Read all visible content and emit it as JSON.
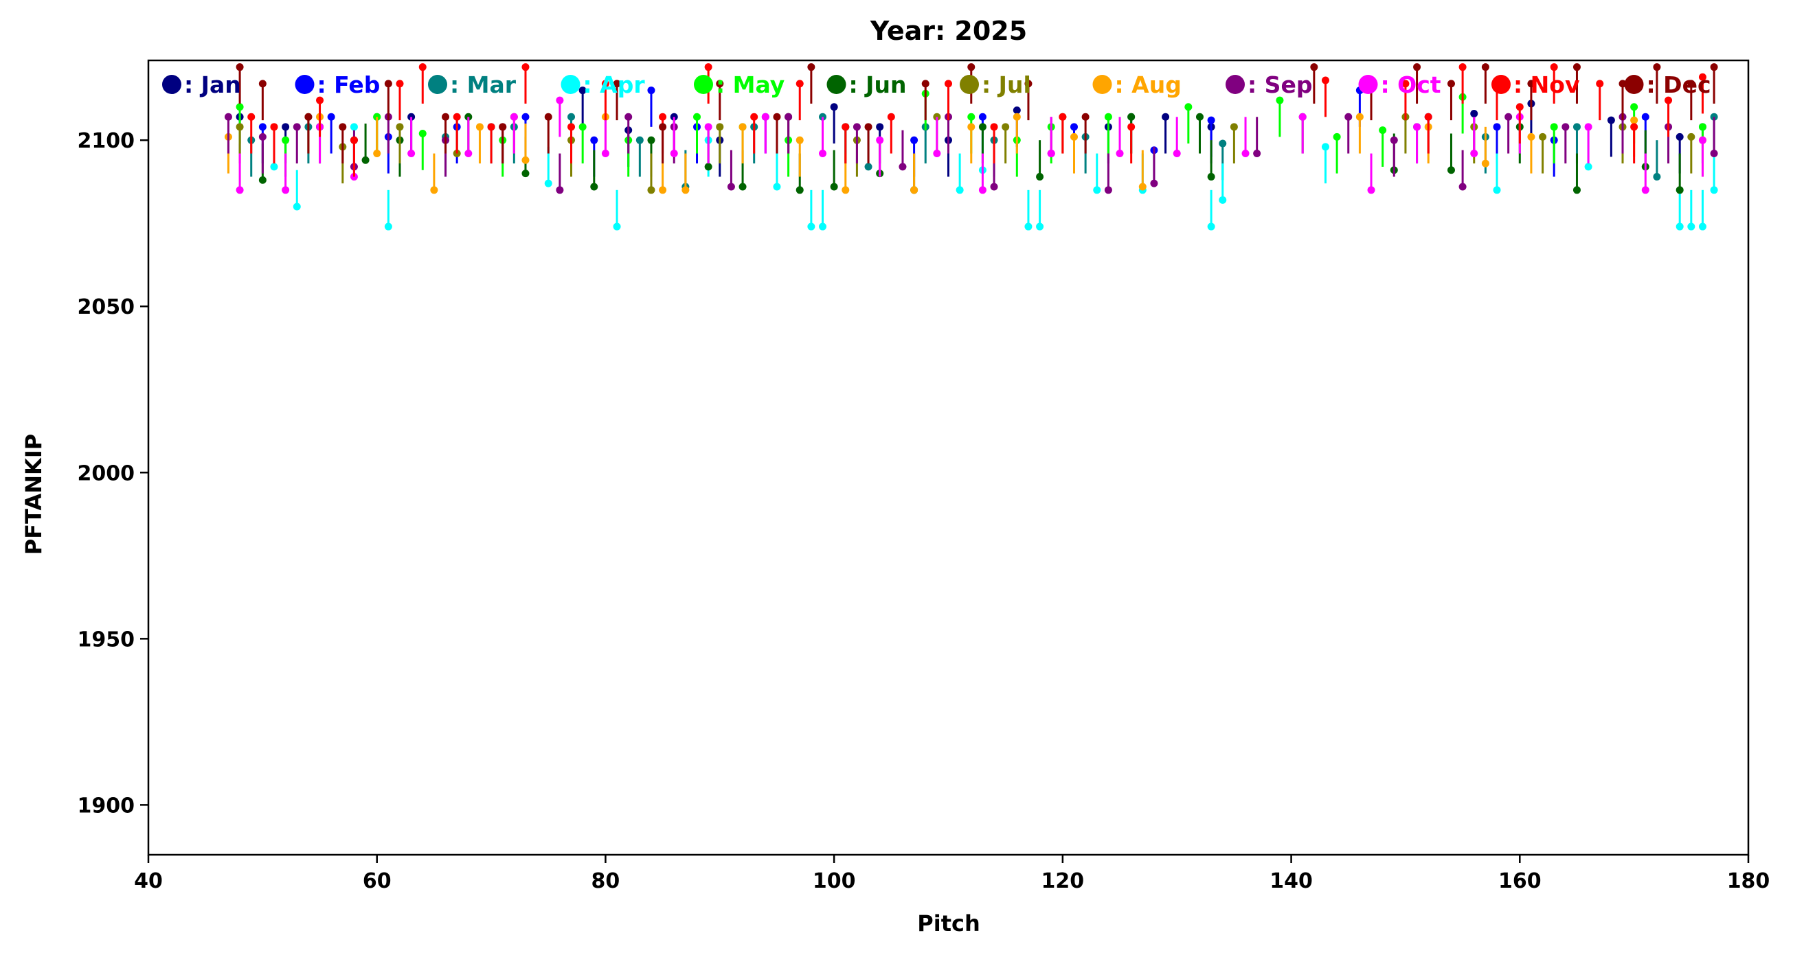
{
  "chart_data": {
    "type": "scatter",
    "title": "Year: 2025",
    "xlabel": "Pitch",
    "ylabel": "PFTANKIP",
    "xlim": [
      40,
      180
    ],
    "ylim": [
      1885,
      2124
    ],
    "xticks": [
      40,
      60,
      80,
      100,
      120,
      140,
      160,
      180
    ],
    "yticks": [
      1900,
      1950,
      2000,
      2050,
      2100
    ],
    "xtick_labels": [
      "40",
      "60",
      "80",
      "100",
      "120",
      "140",
      "160",
      "180"
    ],
    "ytick_labels": [
      "1900",
      "1950",
      "2000",
      "2050",
      "2100"
    ],
    "grid": false,
    "legend_placement": "top, inside plot, single row",
    "series": [
      {
        "name": ": Jan",
        "color": "#000080",
        "points": [
          [
            48,
            2107
          ],
          [
            52,
            2104
          ],
          [
            58,
            2100
          ],
          [
            63,
            2107
          ],
          [
            70,
            2104
          ],
          [
            78,
            2115
          ],
          [
            82,
            2103
          ],
          [
            86,
            2107
          ],
          [
            90,
            2100
          ],
          [
            96,
            2107
          ],
          [
            100,
            2110
          ],
          [
            104,
            2104
          ],
          [
            110,
            2100
          ],
          [
            116,
            2109
          ],
          [
            124,
            2104
          ],
          [
            129,
            2107
          ],
          [
            133,
            2104
          ],
          [
            156,
            2108
          ],
          [
            161,
            2111
          ],
          [
            168,
            2106
          ],
          [
            174,
            2101
          ]
        ]
      },
      {
        "name": ": Feb",
        "color": "#0000ff",
        "points": [
          [
            50,
            2104
          ],
          [
            56,
            2107
          ],
          [
            61,
            2101
          ],
          [
            67,
            2104
          ],
          [
            73,
            2107
          ],
          [
            79,
            2100
          ],
          [
            84,
            2115
          ],
          [
            88,
            2104
          ],
          [
            94,
            2107
          ],
          [
            101,
            2104
          ],
          [
            107,
            2100
          ],
          [
            113,
            2107
          ],
          [
            121,
            2104
          ],
          [
            128,
            2097
          ],
          [
            133,
            2106
          ],
          [
            146,
            2115
          ],
          [
            152,
            2107
          ],
          [
            158,
            2104
          ],
          [
            163,
            2100
          ],
          [
            171,
            2107
          ],
          [
            176,
            2104
          ]
        ]
      },
      {
        "name": ": Mar",
        "color": "#008080",
        "points": [
          [
            49,
            2100
          ],
          [
            54,
            2104
          ],
          [
            60,
            2107
          ],
          [
            66,
            2101
          ],
          [
            72,
            2104
          ],
          [
            77,
            2107
          ],
          [
            83,
            2100
          ],
          [
            87,
            2086
          ],
          [
            93,
            2104
          ],
          [
            99,
            2107
          ],
          [
            103,
            2092
          ],
          [
            108,
            2104
          ],
          [
            114,
            2100
          ],
          [
            122,
            2101
          ],
          [
            126,
            2107
          ],
          [
            134,
            2099
          ],
          [
            151,
            2104
          ],
          [
            157,
            2101
          ],
          [
            165,
            2104
          ],
          [
            172,
            2089
          ],
          [
            177,
            2107
          ]
        ]
      },
      {
        "name": ": Apr",
        "color": "#00ffff",
        "points": [
          [
            51,
            2092
          ],
          [
            53,
            2080
          ],
          [
            58,
            2104
          ],
          [
            61,
            2074
          ],
          [
            66,
            2100
          ],
          [
            70,
            2104
          ],
          [
            75,
            2087
          ],
          [
            81,
            2074
          ],
          [
            89,
            2100
          ],
          [
            95,
            2086
          ],
          [
            98,
            2074
          ],
          [
            99,
            2074
          ],
          [
            111,
            2085
          ],
          [
            113,
            2091
          ],
          [
            117,
            2074
          ],
          [
            118,
            2074
          ],
          [
            123,
            2085
          ],
          [
            127,
            2085
          ],
          [
            133,
            2074
          ],
          [
            134,
            2082
          ],
          [
            143,
            2098
          ],
          [
            158,
            2085
          ],
          [
            166,
            2092
          ],
          [
            174,
            2074
          ],
          [
            175,
            2074
          ],
          [
            176,
            2074
          ],
          [
            177,
            2085
          ]
        ]
      },
      {
        "name": ": May",
        "color": "#00ff00",
        "points": [
          [
            48,
            2110
          ],
          [
            52,
            2100
          ],
          [
            55,
            2104
          ],
          [
            60,
            2107
          ],
          [
            64,
            2102
          ],
          [
            71,
            2100
          ],
          [
            78,
            2104
          ],
          [
            82,
            2100
          ],
          [
            88,
            2107
          ],
          [
            92,
            2104
          ],
          [
            96,
            2100
          ],
          [
            101,
            2104
          ],
          [
            108,
            2114
          ],
          [
            112,
            2107
          ],
          [
            116,
            2100
          ],
          [
            119,
            2104
          ],
          [
            124,
            2107
          ],
          [
            131,
            2110
          ],
          [
            139,
            2112
          ],
          [
            144,
            2101
          ],
          [
            148,
            2103
          ],
          [
            155,
            2113
          ],
          [
            163,
            2104
          ],
          [
            170,
            2110
          ],
          [
            176,
            2104
          ]
        ]
      },
      {
        "name": ": Jun",
        "color": "#006400",
        "points": [
          [
            50,
            2088
          ],
          [
            55,
            2104
          ],
          [
            59,
            2094
          ],
          [
            62,
            2100
          ],
          [
            68,
            2107
          ],
          [
            73,
            2090
          ],
          [
            79,
            2086
          ],
          [
            84,
            2100
          ],
          [
            89,
            2092
          ],
          [
            92,
            2086
          ],
          [
            97,
            2085
          ],
          [
            100,
            2086
          ],
          [
            104,
            2090
          ],
          [
            107,
            2085
          ],
          [
            113,
            2104
          ],
          [
            118,
            2089
          ],
          [
            126,
            2107
          ],
          [
            132,
            2107
          ],
          [
            133,
            2089
          ],
          [
            141,
            2107
          ],
          [
            149,
            2091
          ],
          [
            154,
            2091
          ],
          [
            160,
            2104
          ],
          [
            165,
            2085
          ],
          [
            171,
            2092
          ],
          [
            174,
            2085
          ]
        ]
      },
      {
        "name": ": Jul",
        "color": "#808000",
        "points": [
          [
            48,
            2104
          ],
          [
            54,
            2107
          ],
          [
            57,
            2098
          ],
          [
            62,
            2104
          ],
          [
            67,
            2096
          ],
          [
            72,
            2107
          ],
          [
            77,
            2100
          ],
          [
            84,
            2085
          ],
          [
            90,
            2104
          ],
          [
            96,
            2107
          ],
          [
            102,
            2100
          ],
          [
            109,
            2107
          ],
          [
            115,
            2104
          ],
          [
            120,
            2107
          ],
          [
            135,
            2104
          ],
          [
            150,
            2107
          ],
          [
            156,
            2104
          ],
          [
            162,
            2101
          ],
          [
            169,
            2104
          ],
          [
            175,
            2101
          ]
        ]
      },
      {
        "name": ": Aug",
        "color": "#ffa500",
        "points": [
          [
            47,
            2101
          ],
          [
            51,
            2104
          ],
          [
            55,
            2107
          ],
          [
            60,
            2096
          ],
          [
            65,
            2085
          ],
          [
            69,
            2104
          ],
          [
            73,
            2094
          ],
          [
            80,
            2107
          ],
          [
            85,
            2085
          ],
          [
            87,
            2085
          ],
          [
            92,
            2104
          ],
          [
            97,
            2100
          ],
          [
            101,
            2085
          ],
          [
            107,
            2085
          ],
          [
            112,
            2104
          ],
          [
            116,
            2107
          ],
          [
            121,
            2101
          ],
          [
            127,
            2086
          ],
          [
            146,
            2107
          ],
          [
            152,
            2104
          ],
          [
            157,
            2093
          ],
          [
            161,
            2101
          ],
          [
            170,
            2106
          ],
          [
            176,
            2100
          ]
        ]
      },
      {
        "name": ": Sep",
        "color": "#800080",
        "points": [
          [
            47,
            2107
          ],
          [
            50,
            2101
          ],
          [
            53,
            2104
          ],
          [
            58,
            2092
          ],
          [
            61,
            2107
          ],
          [
            66,
            2100
          ],
          [
            71,
            2104
          ],
          [
            76,
            2085
          ],
          [
            82,
            2107
          ],
          [
            86,
            2104
          ],
          [
            91,
            2086
          ],
          [
            96,
            2107
          ],
          [
            102,
            2104
          ],
          [
            106,
            2092
          ],
          [
            110,
            2107
          ],
          [
            114,
            2086
          ],
          [
            119,
            2096
          ],
          [
            124,
            2085
          ],
          [
            128,
            2087
          ],
          [
            137,
            2096
          ],
          [
            145,
            2107
          ],
          [
            149,
            2100
          ],
          [
            155,
            2086
          ],
          [
            159,
            2107
          ],
          [
            164,
            2104
          ],
          [
            169,
            2107
          ],
          [
            173,
            2104
          ],
          [
            177,
            2096
          ]
        ]
      },
      {
        "name": ": Oct",
        "color": "#ff00ff",
        "points": [
          [
            48,
            2085
          ],
          [
            52,
            2085
          ],
          [
            55,
            2104
          ],
          [
            58,
            2089
          ],
          [
            63,
            2096
          ],
          [
            68,
            2096
          ],
          [
            72,
            2107
          ],
          [
            76,
            2112
          ],
          [
            80,
            2096
          ],
          [
            86,
            2096
          ],
          [
            89,
            2104
          ],
          [
            94,
            2107
          ],
          [
            99,
            2096
          ],
          [
            104,
            2100
          ],
          [
            109,
            2096
          ],
          [
            113,
            2085
          ],
          [
            119,
            2096
          ],
          [
            125,
            2096
          ],
          [
            130,
            2096
          ],
          [
            136,
            2096
          ],
          [
            141,
            2107
          ],
          [
            147,
            2085
          ],
          [
            151,
            2104
          ],
          [
            156,
            2096
          ],
          [
            160,
            2107
          ],
          [
            166,
            2104
          ],
          [
            171,
            2085
          ],
          [
            176,
            2100
          ]
        ]
      },
      {
        "name": ": Nov",
        "color": "#ff0000",
        "points": [
          [
            49,
            2107
          ],
          [
            51,
            2104
          ],
          [
            55,
            2112
          ],
          [
            58,
            2100
          ],
          [
            62,
            2117
          ],
          [
            64,
            2122
          ],
          [
            67,
            2107
          ],
          [
            70,
            2104
          ],
          [
            73,
            2122
          ],
          [
            77,
            2104
          ],
          [
            80,
            2117
          ],
          [
            85,
            2107
          ],
          [
            89,
            2122
          ],
          [
            93,
            2107
          ],
          [
            97,
            2117
          ],
          [
            101,
            2104
          ],
          [
            105,
            2107
          ],
          [
            110,
            2117
          ],
          [
            114,
            2104
          ],
          [
            120,
            2107
          ],
          [
            126,
            2104
          ],
          [
            143,
            2118
          ],
          [
            150,
            2117
          ],
          [
            152,
            2107
          ],
          [
            155,
            2122
          ],
          [
            158,
            2117
          ],
          [
            160,
            2110
          ],
          [
            163,
            2122
          ],
          [
            167,
            2117
          ],
          [
            170,
            2104
          ],
          [
            173,
            2112
          ],
          [
            176,
            2119
          ]
        ]
      },
      {
        "name": ": Dec",
        "color": "#8b0000",
        "points": [
          [
            48,
            2122
          ],
          [
            50,
            2117
          ],
          [
            54,
            2107
          ],
          [
            57,
            2104
          ],
          [
            61,
            2117
          ],
          [
            66,
            2107
          ],
          [
            71,
            2104
          ],
          [
            75,
            2107
          ],
          [
            81,
            2117
          ],
          [
            85,
            2104
          ],
          [
            90,
            2117
          ],
          [
            95,
            2107
          ],
          [
            98,
            2122
          ],
          [
            103,
            2104
          ],
          [
            108,
            2117
          ],
          [
            112,
            2122
          ],
          [
            117,
            2117
          ],
          [
            122,
            2107
          ],
          [
            142,
            2122
          ],
          [
            147,
            2117
          ],
          [
            151,
            2122
          ],
          [
            154,
            2117
          ],
          [
            157,
            2122
          ],
          [
            161,
            2117
          ],
          [
            165,
            2122
          ],
          [
            169,
            2117
          ],
          [
            172,
            2122
          ],
          [
            175,
            2117
          ],
          [
            177,
            2122
          ]
        ]
      }
    ]
  }
}
